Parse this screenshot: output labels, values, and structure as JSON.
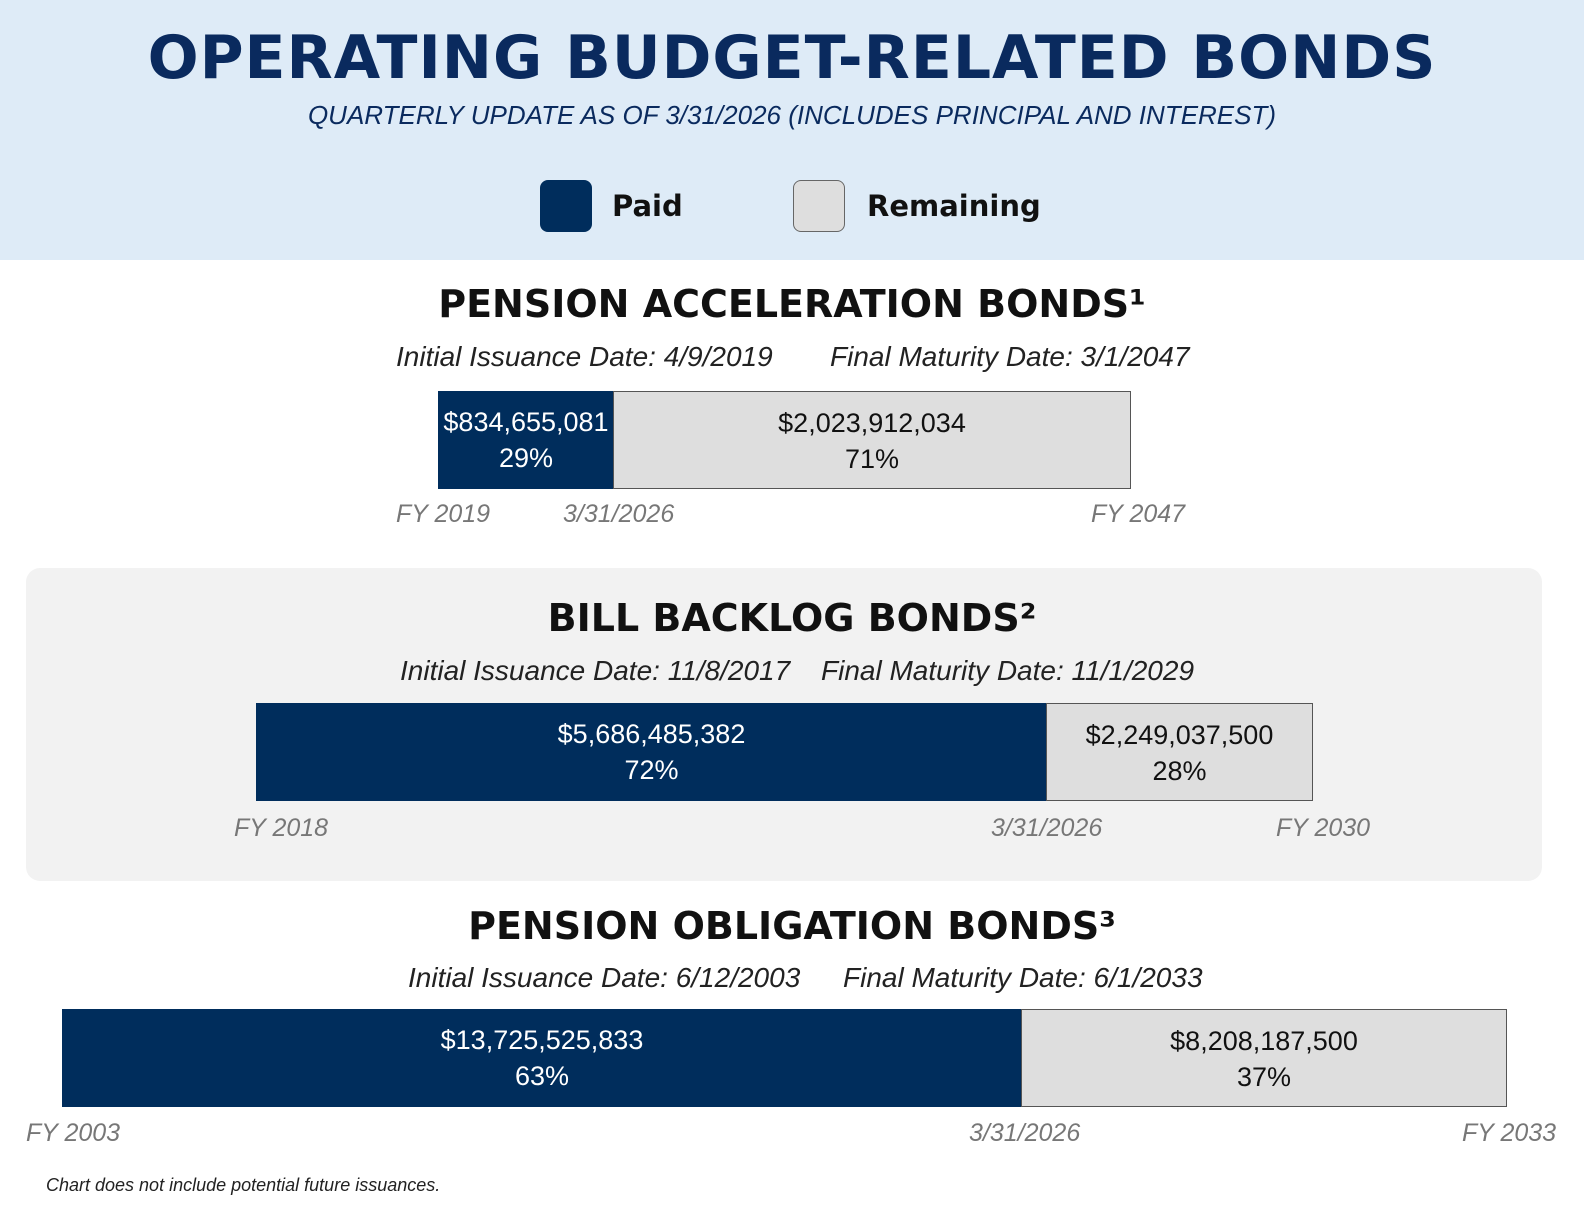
{
  "header": {
    "title": "OPERATING BUDGET-RELATED BONDS",
    "subtitle": "QUARTERLY UPDATE AS OF 3/31/2026 (INCLUDES PRINCIPAL AND INTEREST)"
  },
  "legend": {
    "paid_label": "Paid",
    "remaining_label": "Remaining",
    "paid_color": "#002d5c",
    "remaining_color": "#dedede"
  },
  "bonds": [
    {
      "title": "PENSION ACCELERATION BONDS¹",
      "issuance": "Initial Issuance Date: 4/9/2019",
      "maturity": "Final Maturity Date: 3/1/2047",
      "paid_amount": "$834,655,081",
      "paid_pct": "29%",
      "remaining_amount": "$2,023,912,034",
      "remaining_pct": "71%",
      "axis_start": "FY 2019",
      "axis_mid": "3/31/2026",
      "axis_end": "FY 2047"
    },
    {
      "title": "BILL BACKLOG BONDS²",
      "issuance": "Initial Issuance Date: 11/8/2017",
      "maturity": "Final Maturity Date: 11/1/2029",
      "paid_amount": "$5,686,485,382",
      "paid_pct": "72%",
      "remaining_amount": "$2,249,037,500",
      "remaining_pct": "28%",
      "axis_start": "FY 2018",
      "axis_mid": "3/31/2026",
      "axis_end": "FY 2030"
    },
    {
      "title": "PENSION OBLIGATION BONDS³",
      "issuance": "Initial Issuance Date: 6/12/2003",
      "maturity": "Final Maturity Date: 6/1/2033",
      "paid_amount": "$13,725,525,833",
      "paid_pct": "63%",
      "remaining_amount": "$8,208,187,500",
      "remaining_pct": "37%",
      "axis_start": "FY 2003",
      "axis_mid": "3/31/2026",
      "axis_end": "FY 2033"
    }
  ],
  "footnote": "Chart does not include potential future issuances.",
  "chart_data": [
    {
      "type": "bar",
      "title": "PENSION ACCELERATION BONDS¹",
      "categories": [
        "Paid",
        "Remaining"
      ],
      "values": [
        834655081,
        2023912034
      ],
      "percentages": [
        29,
        71
      ],
      "x_start": "FY 2019",
      "x_current": "3/31/2026",
      "x_end": "FY 2047",
      "stacked": true,
      "orientation": "horizontal"
    },
    {
      "type": "bar",
      "title": "BILL BACKLOG BONDS²",
      "categories": [
        "Paid",
        "Remaining"
      ],
      "values": [
        5686485382,
        2249037500
      ],
      "percentages": [
        72,
        28
      ],
      "x_start": "FY 2018",
      "x_current": "3/31/2026",
      "x_end": "FY 2030",
      "stacked": true,
      "orientation": "horizontal"
    },
    {
      "type": "bar",
      "title": "PENSION OBLIGATION BONDS³",
      "categories": [
        "Paid",
        "Remaining"
      ],
      "values": [
        13725525833,
        8208187500
      ],
      "percentages": [
        63,
        37
      ],
      "x_start": "FY 2003",
      "x_current": "3/31/2026",
      "x_end": "FY 2033",
      "stacked": true,
      "orientation": "horizontal"
    }
  ]
}
